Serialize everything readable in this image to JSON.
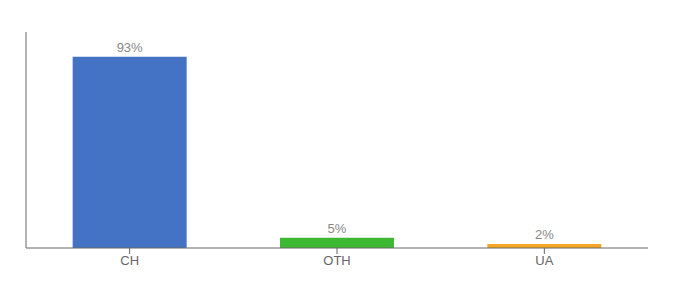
{
  "chart_data": {
    "type": "bar",
    "categories": [
      "CH",
      "OTH",
      "UA"
    ],
    "values": [
      93,
      5,
      2
    ],
    "colors": [
      "#4472C4",
      "#3CB832",
      "#F5A623"
    ],
    "ylim": [
      0,
      105
    ],
    "data_labels": true,
    "value_labels": [
      "93%",
      "5%",
      "2%"
    ],
    "tick_labels": "x",
    "grid": false
  }
}
